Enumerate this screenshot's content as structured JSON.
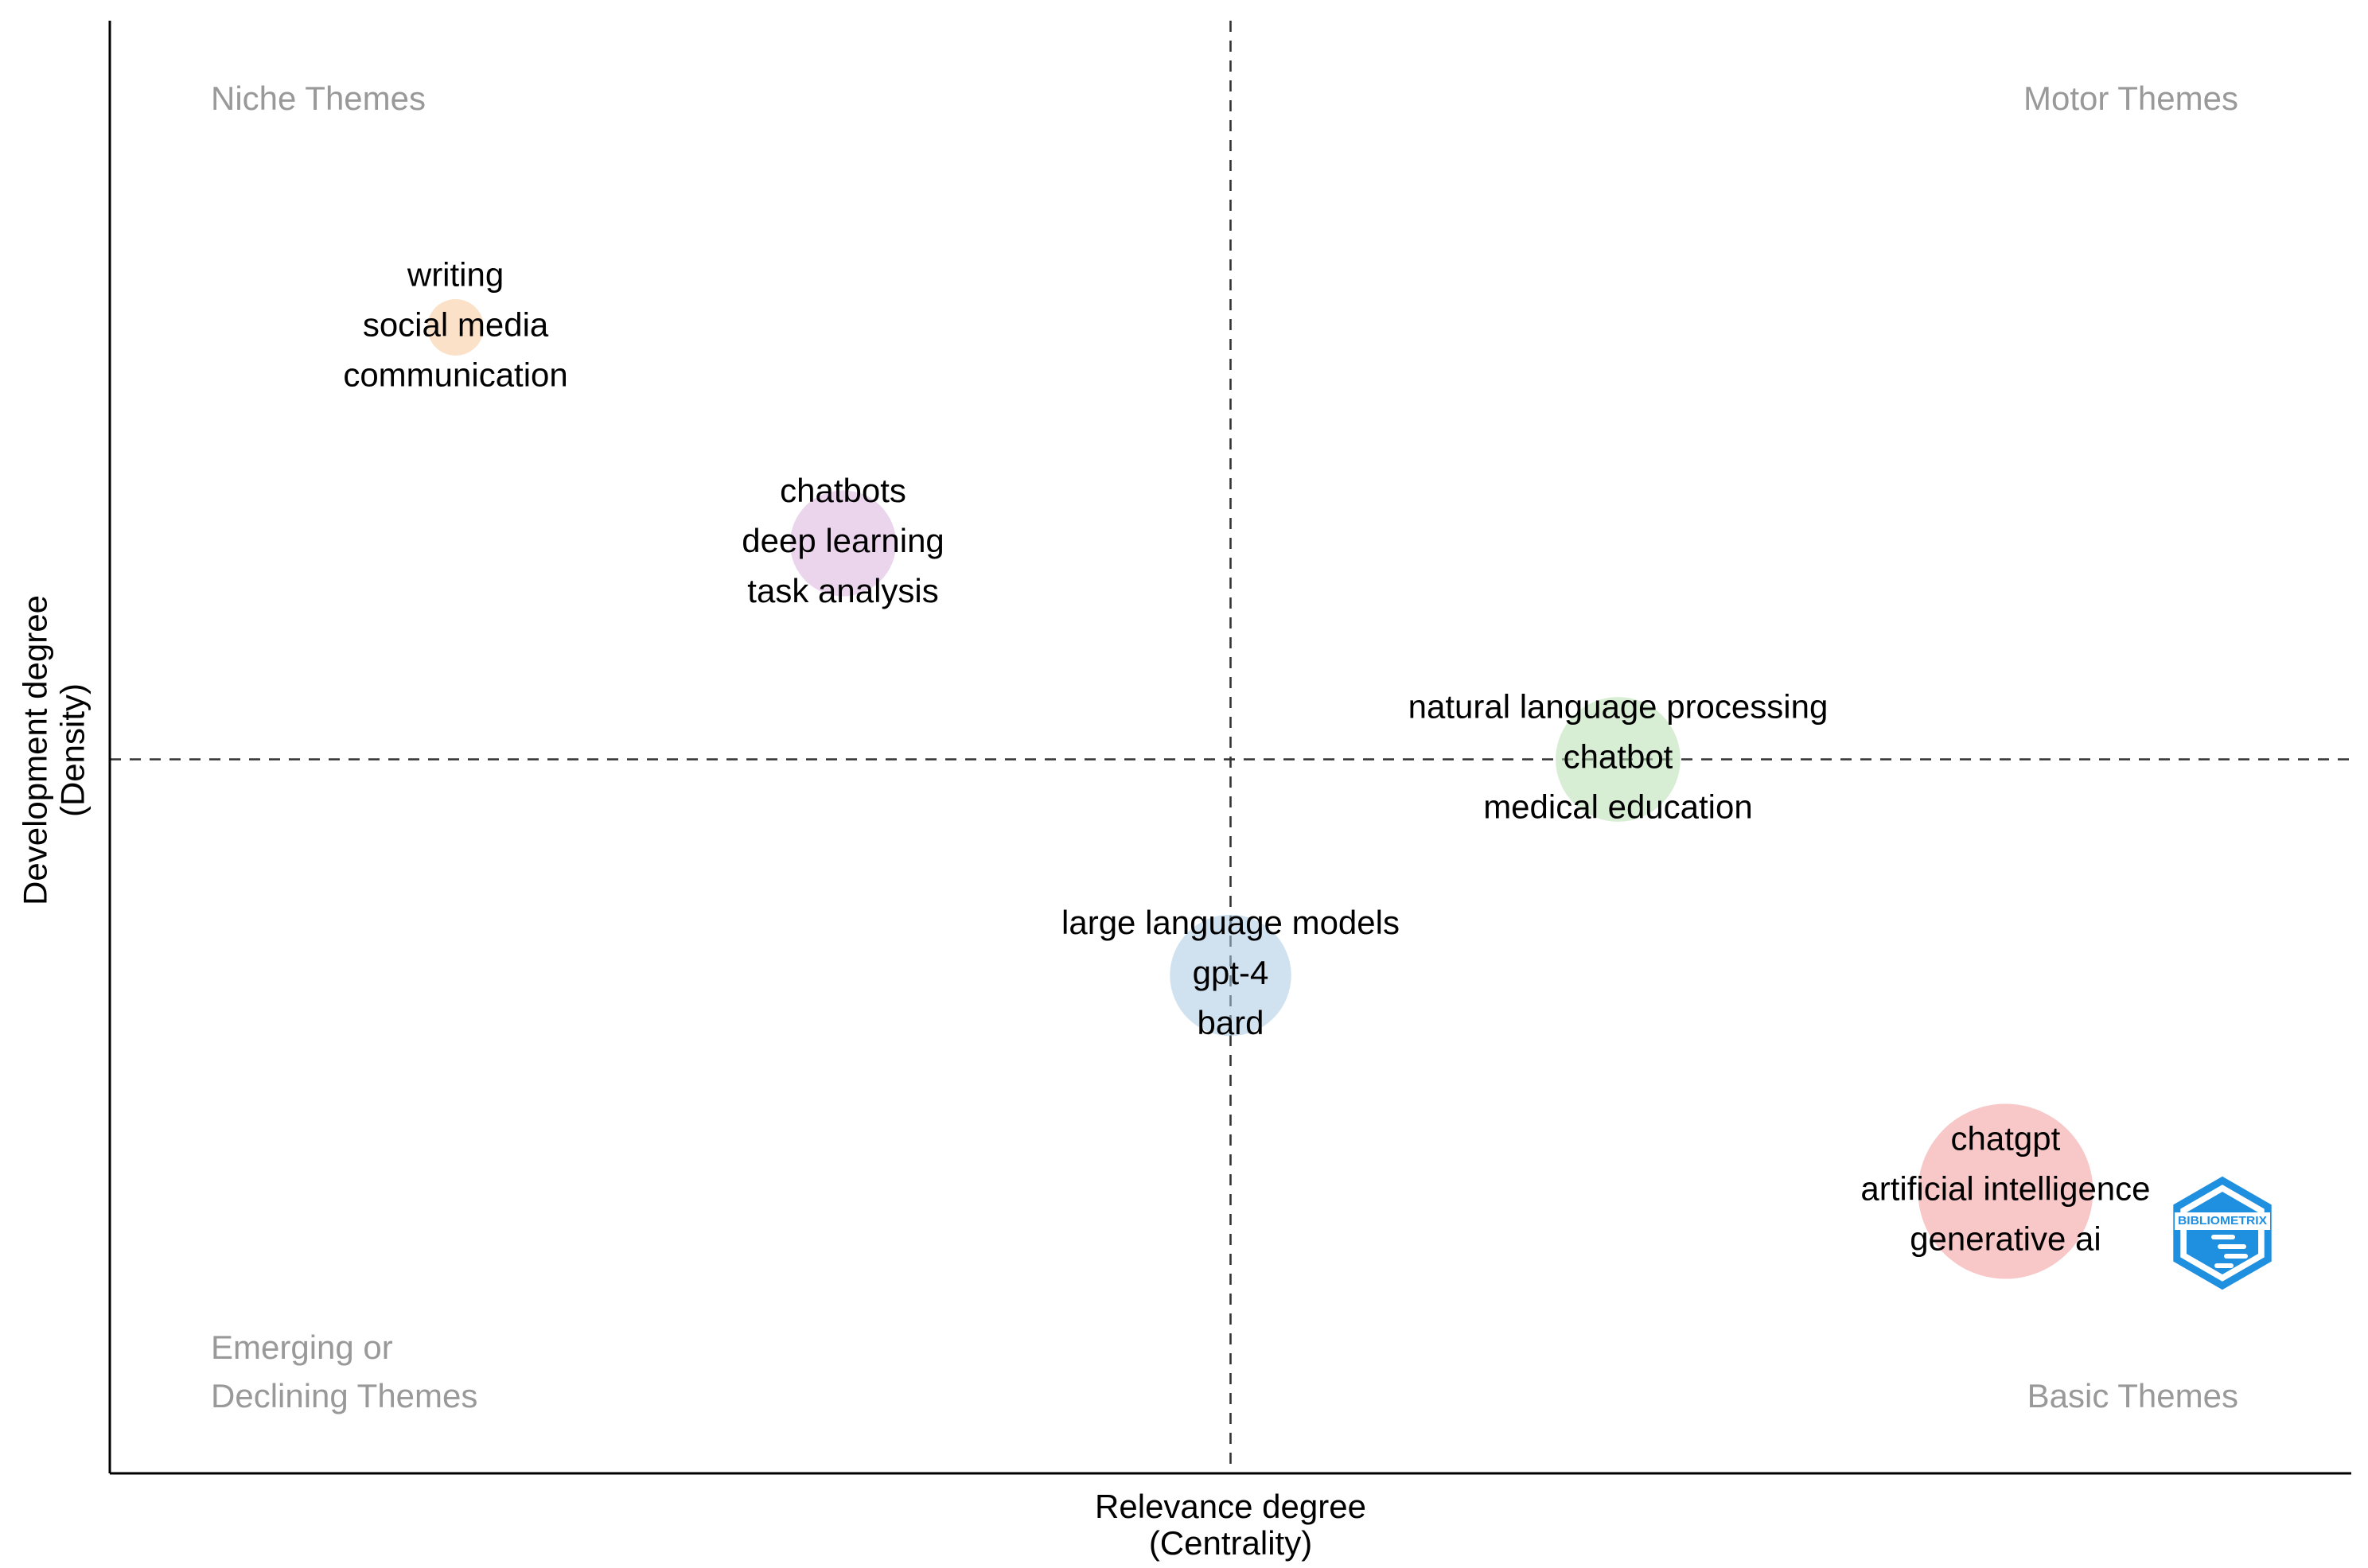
{
  "chart_data": {
    "type": "scatter",
    "title": "",
    "xlabel": [
      "Relevance degree",
      "(Centrality)"
    ],
    "ylabel": [
      "Development degree",
      "(Density)"
    ],
    "xlim": [
      0,
      1
    ],
    "ylim": [
      0,
      1
    ],
    "ref_x": 0.5,
    "ref_y": 0.5,
    "quadrants": {
      "top_left": [
        "Niche Themes"
      ],
      "top_right": [
        "Motor Themes"
      ],
      "bottom_left": [
        "Emerging or",
        "Declining Themes"
      ],
      "bottom_right": [
        "Basic Themes"
      ]
    },
    "clusters": [
      {
        "name": "writing",
        "x": 0.12,
        "y": 0.88,
        "size": 0.05,
        "color": "#f7c99a",
        "labels": [
          "writing",
          "social media",
          "communication"
        ]
      },
      {
        "name": "chatbots",
        "x": 0.31,
        "y": 0.69,
        "size": 0.3,
        "color": "#d9b3dc",
        "labels": [
          "chatbots",
          "deep learning",
          "task analysis"
        ]
      },
      {
        "name": "chatbot",
        "x": 0.69,
        "y": 0.5,
        "size": 0.45,
        "color": "#b8e0b0",
        "labels": [
          "natural language processing",
          "chatbot",
          "medical education"
        ]
      },
      {
        "name": "gpt-4",
        "x": 0.5,
        "y": 0.31,
        "size": 0.42,
        "color": "#a9c8e3",
        "labels": [
          "large language models",
          "gpt-4",
          "bard"
        ]
      },
      {
        "name": "chatgpt",
        "x": 0.88,
        "y": 0.12,
        "size": 1.0,
        "color": "#f29a9a",
        "labels": [
          "chatgpt",
          "artificial intelligence",
          "generative ai"
        ]
      }
    ],
    "logo": {
      "text": "BIBLIOMETRIX",
      "color": "#1f8fe0"
    }
  }
}
